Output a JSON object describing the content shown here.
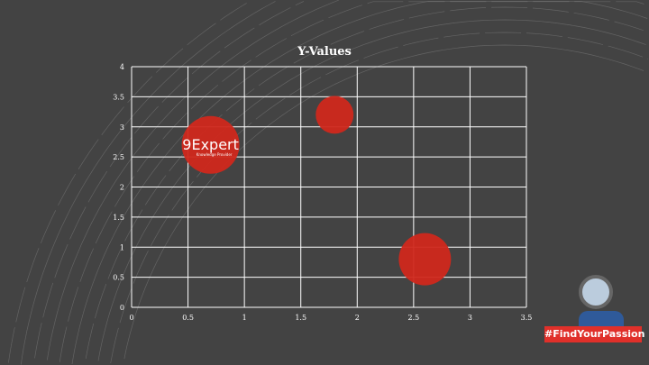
{
  "chart_data": {
    "type": "bubble",
    "title": "Y-Values",
    "xlim": [
      0,
      3.5
    ],
    "ylim": [
      0,
      4
    ],
    "x_ticks": [
      "0",
      "0.5",
      "1",
      "1.5",
      "2",
      "2.5",
      "3",
      "3.5"
    ],
    "y_ticks": [
      "0",
      "0.5",
      "1",
      "1.5",
      "2",
      "2.5",
      "3",
      "3.5",
      "4"
    ],
    "grid": true,
    "points": [
      {
        "x": 0.7,
        "y": 2.7,
        "size": 10
      },
      {
        "x": 1.8,
        "y": 3.2,
        "size": 4.3
      },
      {
        "x": 2.6,
        "y": 0.8,
        "size": 8.2
      }
    ],
    "bubble_color": "#d0281c"
  },
  "logo": {
    "name": "9Expert",
    "tagline": "Knowledge Provider"
  },
  "badge": {
    "text": "#FindYourPassion",
    "color": "#e0302a"
  },
  "background_color": "#434343"
}
